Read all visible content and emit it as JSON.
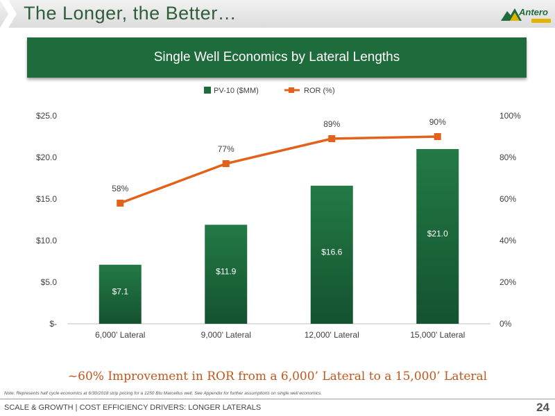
{
  "slide": {
    "title": "The Longer, the Better…",
    "brand": "Antero",
    "banner": "Single Well Economics by Lateral Lengths",
    "headline": "~60% Improvement in ROR from a 6,000’ Lateral to a 15,000’ Lateral",
    "note": "Note: Represents half cycle economics at 6/30/2018 strip pricing for a 1250 Btu Marcellus well.  See Appendix for further assumptions on single well economics.",
    "footer": "SCALE & GROWTH | COST EFFICIENCY DRIVERS: LONGER LATERALS",
    "page_number": "24"
  },
  "chart_data": {
    "type": "bar",
    "title": "",
    "categories": [
      "6,000' Lateral",
      "9,000' Lateral",
      "12,000' Lateral",
      "15,000' Lateral"
    ],
    "series": [
      {
        "name": "PV-10 ($MM)",
        "kind": "bar",
        "axis": "left",
        "color": "#1e6b3b",
        "values": [
          7.1,
          11.9,
          16.6,
          21.0
        ],
        "labels": [
          "$7.1",
          "$11.9",
          "$16.6",
          "$21.0"
        ]
      },
      {
        "name": "ROR (%)",
        "kind": "line",
        "axis": "right",
        "color": "#e2621b",
        "values": [
          58,
          77,
          89,
          90
        ],
        "labels": [
          "58%",
          "77%",
          "89%",
          "90%"
        ]
      }
    ],
    "y_left": {
      "range": [
        0,
        25
      ],
      "ticks": [
        0,
        5,
        10,
        15,
        20,
        25
      ],
      "tick_labels": [
        "$-",
        "$5.0",
        "$10.0",
        "$15.0",
        "$20.0",
        "$25.0"
      ]
    },
    "y_right": {
      "range": [
        0,
        100
      ],
      "ticks": [
        0,
        20,
        40,
        60,
        80,
        100
      ],
      "tick_labels": [
        "0%",
        "20%",
        "40%",
        "60%",
        "80%",
        "100%"
      ]
    },
    "legend": "top-center",
    "grid": false
  }
}
